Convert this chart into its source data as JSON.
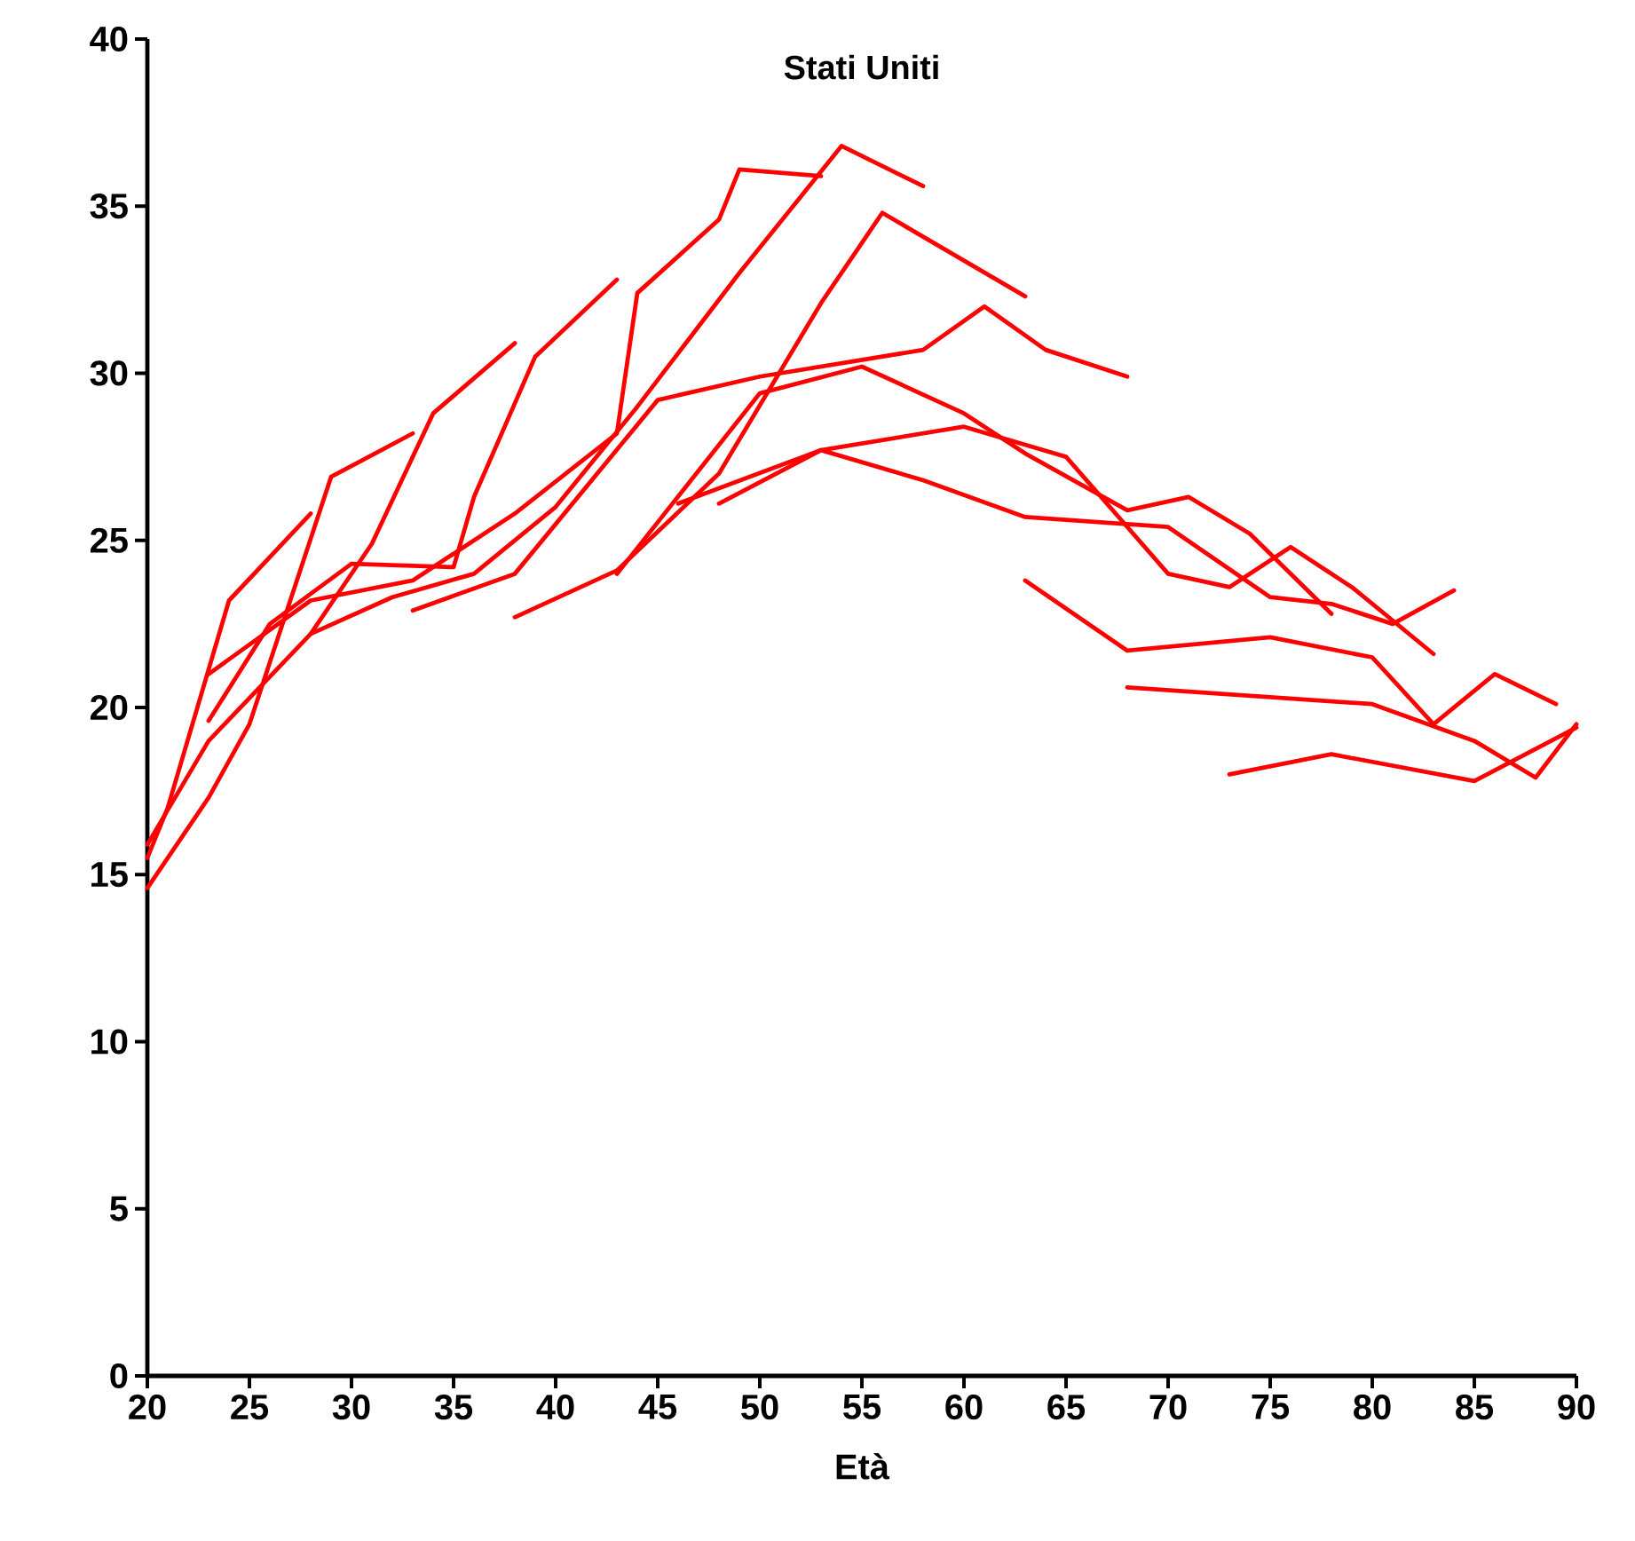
{
  "chart_data": {
    "type": "line",
    "title": "Stati Uniti",
    "xlabel": "Età",
    "xlim": [
      20,
      90
    ],
    "xticks": [
      20,
      25,
      30,
      35,
      40,
      45,
      50,
      55,
      60,
      65,
      70,
      75,
      80,
      85,
      90
    ],
    "ylim": [
      0,
      40
    ],
    "yticks": [
      0,
      5,
      10,
      15,
      20,
      25,
      30,
      35,
      40
    ],
    "grid": false,
    "marker": "none",
    "line_style": "solid",
    "series": [
      {
        "color": "#ff0000",
        "x": [
          20,
          21,
          24,
          28
        ],
        "values": [
          15.5,
          17,
          23.2,
          25.8
        ]
      },
      {
        "color": "#ff0000",
        "x": [
          20,
          23,
          25,
          29,
          33
        ],
        "values": [
          14.6,
          17.3,
          19.5,
          26.9,
          28.2
        ]
      },
      {
        "color": "#ff0000",
        "x": [
          20,
          23,
          28,
          31,
          34,
          38
        ],
        "values": [
          15.9,
          19,
          22.2,
          24.9,
          28.8,
          30.9
        ]
      },
      {
        "color": "#ff0000",
        "x": [
          23,
          26,
          30,
          35,
          36,
          39,
          43
        ],
        "values": [
          19.6,
          22.5,
          24.3,
          24.2,
          26.3,
          30.5,
          32.8
        ]
      },
      {
        "color": "#ff0000",
        "x": [
          23,
          28,
          33,
          38,
          43,
          44,
          48,
          49,
          53
        ],
        "values": [
          21,
          23.2,
          23.8,
          25.8,
          28.2,
          32.4,
          34.6,
          36.1,
          35.9
        ]
      },
      {
        "color": "#ff0000",
        "x": [
          28,
          32,
          36,
          40,
          44,
          49,
          54,
          58
        ],
        "values": [
          22.2,
          23.3,
          24,
          26,
          29,
          33,
          36.8,
          35.6
        ]
      },
      {
        "color": "#ff0000",
        "x": [
          33,
          38,
          45,
          50,
          58,
          61,
          64,
          68
        ],
        "values": [
          22.9,
          24,
          29.2,
          29.9,
          30.7,
          32,
          30.7,
          29.9
        ]
      },
      {
        "color": "#ff0000",
        "x": [
          38,
          43,
          48,
          53,
          56,
          63
        ],
        "values": [
          22.7,
          24.1,
          27,
          32.1,
          34.8,
          32.3
        ]
      },
      {
        "color": "#ff0000",
        "x": [
          43,
          50,
          55,
          60,
          63,
          68,
          71,
          74,
          78
        ],
        "values": [
          24,
          29.4,
          30.2,
          28.8,
          27.6,
          25.9,
          26.3,
          25.2,
          22.8
        ]
      },
      {
        "color": "#ff0000",
        "x": [
          48,
          53,
          60,
          65,
          70,
          73,
          76,
          79,
          83
        ],
        "values": [
          26.1,
          27.7,
          28.4,
          27.5,
          24,
          23.6,
          24.8,
          23.6,
          21.6
        ]
      },
      {
        "color": "#ff0000",
        "x": [
          46,
          53,
          58,
          63,
          70,
          75,
          78,
          81,
          84
        ],
        "values": [
          26.1,
          27.7,
          26.8,
          25.7,
          25.4,
          23.3,
          23.1,
          22.5,
          23.5
        ]
      },
      {
        "color": "#ff0000",
        "x": [
          63,
          68,
          75,
          80,
          83,
          86,
          89
        ],
        "values": [
          23.8,
          21.7,
          22.1,
          21.5,
          19.5,
          21,
          20.1
        ]
      },
      {
        "color": "#ff0000",
        "x": [
          68,
          80,
          85,
          88,
          90
        ],
        "values": [
          20.6,
          20.1,
          19,
          17.9,
          19.5
        ]
      },
      {
        "color": "#ff0000",
        "x": [
          73,
          78,
          85,
          90
        ],
        "values": [
          18,
          18.6,
          17.8,
          19.4
        ]
      }
    ]
  }
}
